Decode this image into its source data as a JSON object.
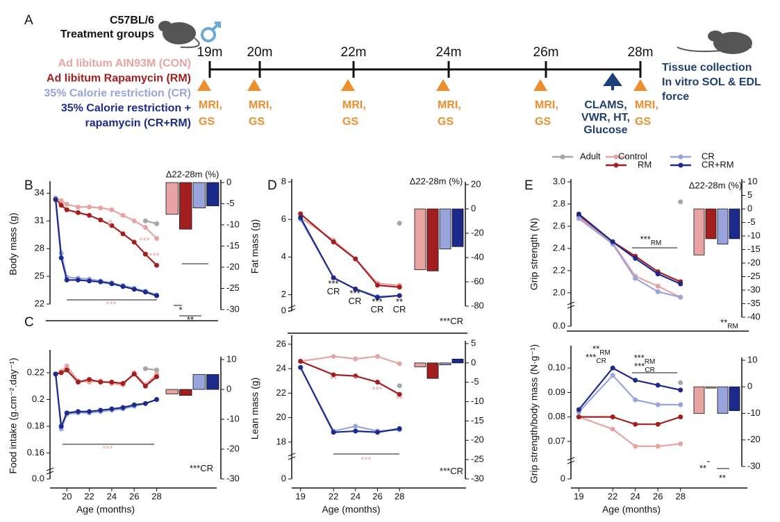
{
  "timeline": {
    "label": "A",
    "strain": "C57BL/6",
    "subtitle": "Treatment groups",
    "groups": [
      {
        "name": [
          "Ad libitum AIN93M (CON)"
        ],
        "color": "#e8a3a3"
      },
      {
        "name": [
          "Ad libitum Rapamycin (RM)"
        ],
        "color": "#a31f1f"
      },
      {
        "name": [
          "35% Calorie restriction (CR)"
        ],
        "color": "#9aa4dc"
      },
      {
        "name": [
          "35% Calorie restriction +",
          "rapamycin (CR+RM)"
        ],
        "color": "#1c2a8c"
      }
    ],
    "timepoints": [
      {
        "label": "19m",
        "event": [
          "MRI,",
          "GS"
        ]
      },
      {
        "label": "20m",
        "event": [
          "MRI,",
          "GS"
        ]
      },
      {
        "label": "22m",
        "event": [
          "MRI,",
          "GS"
        ]
      },
      {
        "label": "24m",
        "event": [
          "MRI,",
          "GS"
        ]
      },
      {
        "label": "26m",
        "event": [
          "MRI,",
          "GS"
        ]
      },
      {
        "label": "28m",
        "event": [
          "MRI,",
          "GS"
        ]
      }
    ],
    "extra": [
      "CLAMS,",
      "VWR, HT,",
      "Glucose"
    ],
    "end": [
      "Tissue collection",
      "In vitro SOL & EDL",
      "force"
    ]
  },
  "legend": [
    {
      "name": "Adult",
      "color": "#a6a6a6"
    },
    {
      "name": "Control",
      "color": "#e8a3a3"
    },
    {
      "name": "RM",
      "color": "#a31f1f"
    },
    {
      "name": "CR",
      "color": "#9aa4dc"
    },
    {
      "name": "CR+RM",
      "color": "#1c2a8c"
    }
  ],
  "chart_data": [
    {
      "type": "line",
      "panel": "B",
      "ylabel": "Body mass (g)",
      "x": [
        19,
        19.5,
        20,
        21,
        22,
        23,
        24,
        25,
        26,
        27,
        28
      ],
      "xlim": [
        18.5,
        28.4
      ],
      "ylim": [
        22,
        35
      ],
      "yticks": [
        22,
        25,
        28,
        31,
        34
      ],
      "series": [
        {
          "color": "#e8a3a3",
          "values": [
            33.5,
            33.2,
            32.8,
            32.5,
            32.5,
            32.4,
            32.2,
            31.6,
            31,
            30.3,
            29.1
          ]
        },
        {
          "color": "#a31f1f",
          "values": [
            33.4,
            32.7,
            32.2,
            31.9,
            31.6,
            31.1,
            30.5,
            29.6,
            28.7,
            27.4,
            26.2
          ]
        },
        {
          "color": "#9aa4dc",
          "values": [
            33.4,
            27.5,
            24.9,
            24.8,
            24.7,
            24.5,
            24.3,
            24.0,
            23.7,
            23.4,
            23.0
          ]
        },
        {
          "color": "#1c2a8c",
          "values": [
            33.3,
            27,
            24.6,
            24.6,
            24.5,
            24.4,
            24.2,
            23.9,
            23.6,
            23.3,
            22.9
          ]
        },
        {
          "color": "#a6a6a6",
          "x": [
            27,
            28
          ],
          "values": [
            31,
            30.7
          ]
        }
      ],
      "annotations": [
        {
          "text": "***",
          "color": "#e8a3a3"
        },
        {
          "text": "#",
          "color": "#e8a3a3"
        },
        {
          "text": "***",
          "color": "#e8a3a3"
        },
        {
          "text": "***",
          "color": "#e8a3a3"
        }
      ]
    },
    {
      "type": "bar",
      "title": "Δ22-28m (%)",
      "values": [
        -7.5,
        -11,
        -6,
        -5.5
      ],
      "colors": [
        "#e8a3a3",
        "#a31f1f",
        "#9aa4dc",
        "#1c2a8c"
      ],
      "ylim": [
        -30,
        0
      ],
      "yticks": [
        0,
        -5,
        -10,
        -15,
        -20,
        -25,
        -30
      ],
      "annotations": [
        {
          "text": "*"
        },
        {
          "text": "**"
        }
      ]
    },
    {
      "type": "line",
      "panel": "C",
      "ylabel": "Food intake (g.cm⁻².day⁻¹)",
      "xlabel": "Age (months)",
      "x": [
        19,
        19.5,
        20,
        21,
        22,
        23,
        24,
        25,
        26,
        27,
        28
      ],
      "xlim": [
        18.5,
        28.4
      ],
      "xticks": [
        20,
        22,
        24,
        26,
        28
      ],
      "ylim": [
        0.15,
        0.235
      ],
      "yticks": [
        0.16,
        0.18,
        0.2,
        0.22
      ],
      "break_tick": {
        "value": 0,
        "label": "0.0"
      },
      "series": [
        {
          "color": "#e8a3a3",
          "values": [
            0.219,
            0.221,
            0.225,
            0.214,
            0.213,
            0.214,
            0.212,
            0.211,
            0.22,
            0.211,
            0.219
          ]
        },
        {
          "color": "#a31f1f",
          "values": [
            0.219,
            0.22,
            0.222,
            0.213,
            0.215,
            0.213,
            0.213,
            0.212,
            0.219,
            0.21,
            0.217
          ]
        },
        {
          "color": "#9aa4dc",
          "values": [
            0.219,
            0.178,
            0.189,
            0.19,
            0.19,
            0.191,
            0.192,
            0.193,
            0.195,
            0.197,
            0.2
          ]
        },
        {
          "color": "#1c2a8c",
          "values": [
            0.219,
            0.18,
            0.19,
            0.191,
            0.191,
            0.192,
            0.193,
            0.194,
            0.196,
            0.197,
            0.2
          ]
        },
        {
          "color": "#a6a6a6",
          "x": [
            27,
            28
          ],
          "values": [
            0.223,
            0.222
          ]
        }
      ],
      "annotations": [
        {
          "text": "***",
          "color": "#e8a3a3"
        }
      ]
    },
    {
      "type": "bar",
      "values": [
        -1.5,
        -2,
        5,
        5
      ],
      "colors": [
        "#e8a3a3",
        "#a31f1f",
        "#9aa4dc",
        "#1c2a8c"
      ],
      "ylim": [
        -30,
        10
      ],
      "yticks": [
        10,
        0,
        -10,
        -20,
        -30
      ],
      "annotations": [
        {
          "text": "***CR"
        }
      ]
    },
    {
      "type": "line",
      "panel": "D",
      "ylabel": "Fat mass (g)",
      "x": [
        19,
        22,
        24,
        26,
        28
      ],
      "xlim": [
        18.2,
        29
      ],
      "ylim": [
        1.5,
        8
      ],
      "yticks": [
        2,
        4,
        6,
        8
      ],
      "break_tick": 0,
      "series": [
        {
          "color": "#e8a3a3",
          "values": [
            6.1,
            4.9,
            3.9,
            2.6,
            2.5
          ]
        },
        {
          "color": "#a31f1f",
          "values": [
            6.3,
            4.8,
            3.9,
            2.5,
            2.4
          ]
        },
        {
          "color": "#9aa4dc",
          "values": [
            6.0,
            2.9,
            2.3,
            1.9,
            1.95
          ]
        },
        {
          "color": "#1c2a8c",
          "values": [
            6.1,
            2.9,
            2.3,
            1.85,
            1.95
          ]
        },
        {
          "color": "#a6a6a6",
          "x": [
            28
          ],
          "values": [
            5.8
          ]
        }
      ],
      "annotations": [
        {
          "text": "***"
        },
        {
          "text": "CR"
        },
        {
          "text": "***"
        },
        {
          "text": "CR"
        },
        {
          "text": "***"
        },
        {
          "text": "CR"
        },
        {
          "text": "**"
        },
        {
          "text": "CR"
        }
      ]
    },
    {
      "type": "bar",
      "title": "Δ22-28m (%)",
      "values": [
        -50,
        -51,
        -33,
        -31
      ],
      "colors": [
        "#e8a3a3",
        "#a31f1f",
        "#9aa4dc",
        "#1c2a8c"
      ],
      "ylim": [
        -80,
        20
      ],
      "yticks": [
        20,
        0,
        -20,
        -40,
        -60,
        -80
      ],
      "annotations": [
        {
          "text": "***CR"
        }
      ]
    },
    {
      "type": "line",
      "ylabel": "Lean mass (g)",
      "xlabel": "Age (months)",
      "x": [
        19,
        22,
        24,
        26,
        28
      ],
      "xlim": [
        18.2,
        29
      ],
      "xticks": [
        19,
        22,
        24,
        26,
        28
      ],
      "ylim": [
        17.2,
        26.5
      ],
      "yticks": [
        18,
        20,
        22,
        24,
        26
      ],
      "break_tick": 0,
      "series": [
        {
          "color": "#e8a3a3",
          "values": [
            24.6,
            25,
            24.8,
            25,
            24.4
          ]
        },
        {
          "color": "#a31f1f",
          "values": [
            24.6,
            23.5,
            23.4,
            22.9,
            21.9
          ]
        },
        {
          "color": "#9aa4dc",
          "values": [
            24.1,
            18.9,
            19.3,
            18.9,
            19.0
          ]
        },
        {
          "color": "#1c2a8c",
          "values": [
            24.1,
            18.8,
            18.9,
            18.8,
            19.1
          ]
        },
        {
          "color": "#a6a6a6",
          "x": [
            28
          ],
          "values": [
            22.6
          ]
        }
      ],
      "annotations": [
        {
          "text": "**",
          "color": "#e8a3a3"
        },
        {
          "text": "*",
          "color": "#e8a3a3"
        },
        {
          "text": "***",
          "color": "#e8a3a3"
        },
        {
          "text": "**",
          "color": "#e8a3a3"
        },
        {
          "text": "***",
          "color": "#e8a3a3"
        }
      ]
    },
    {
      "type": "bar",
      "values": [
        -1,
        -4,
        -0.5,
        1
      ],
      "colors": [
        "#e8a3a3",
        "#a31f1f",
        "#9aa4dc",
        "#1c2a8c"
      ],
      "ylim": [
        -30,
        5
      ],
      "yticks": [
        5,
        0,
        -5,
        -10,
        -15,
        -20,
        -25,
        -30
      ],
      "annotations": [
        {
          "text": "***CR"
        }
      ]
    },
    {
      "type": "line",
      "panel": "E",
      "ylabel": "Grip strength (N)",
      "x": [
        19,
        22,
        24,
        26,
        28
      ],
      "xlim": [
        18.3,
        29
      ],
      "ylim": [
        1.93,
        3.0
      ],
      "yticks": [
        {
          "value": 2,
          "label": "2.0"
        },
        2.2,
        2.4,
        2.6,
        2.8,
        {
          "value": 3,
          "label": "3.0"
        }
      ],
      "break_tick": {
        "value": 0,
        "label": "0.0"
      },
      "series": [
        {
          "color": "#e8a3a3",
          "values": [
            2.68,
            2.45,
            2.15,
            2.06,
            1.96
          ]
        },
        {
          "color": "#a31f1f",
          "values": [
            2.7,
            2.46,
            2.33,
            2.19,
            2.1
          ]
        },
        {
          "color": "#9aa4dc",
          "values": [
            2.67,
            2.44,
            2.13,
            2.01,
            1.96
          ]
        },
        {
          "color": "#1c2a8c",
          "values": [
            2.71,
            2.46,
            2.31,
            2.17,
            2.08
          ]
        },
        {
          "color": "#a6a6a6",
          "x": [
            28
          ],
          "values": [
            2.82
          ]
        }
      ],
      "annotations": [
        {
          "text": "***",
          "sub": "RM"
        }
      ]
    },
    {
      "type": "bar",
      "title": "Δ22-28m (%)",
      "values": [
        -17,
        -11,
        -13,
        -11
      ],
      "colors": [
        "#e8a3a3",
        "#a31f1f",
        "#9aa4dc",
        "#1c2a8c"
      ],
      "ylim": [
        -40,
        10
      ],
      "yticks": [
        10,
        5,
        0,
        -5,
        -10,
        -15,
        -20,
        -25,
        -30,
        -35,
        -40
      ],
      "annotations": [
        {
          "text": "**",
          "sub": "RM"
        }
      ]
    },
    {
      "type": "line",
      "ylabel": "Grip strength/body mass  (N·g⁻¹)",
      "xlabel": "Age (months)",
      "x": [
        19,
        22,
        24,
        26,
        28
      ],
      "xlim": [
        18.3,
        29
      ],
      "xticks": [
        19,
        22,
        24,
        26,
        28
      ],
      "ylim": [
        0.064,
        0.108
      ],
      "yticks": [
        0.07,
        0.08,
        0.09,
        {
          "value": 0.1,
          "label": "0.10"
        }
      ],
      "break_tick": 0,
      "series": [
        {
          "color": "#e8a3a3",
          "values": [
            0.08,
            0.075,
            0.068,
            0.068,
            0.069
          ]
        },
        {
          "color": "#a31f1f",
          "values": [
            0.08,
            0.08,
            0.077,
            0.077,
            0.08
          ]
        },
        {
          "color": "#9aa4dc",
          "values": [
            0.082,
            0.097,
            0.087,
            0.085,
            0.085
          ]
        },
        {
          "color": "#1c2a8c",
          "values": [
            0.083,
            0.1,
            0.095,
            0.093,
            0.091
          ]
        },
        {
          "color": "#a6a6a6",
          "x": [
            28
          ],
          "values": [
            0.094
          ]
        }
      ],
      "annotations": [
        {
          "text": "**",
          "sub": "RM"
        },
        {
          "text": "***",
          "sub": "CR"
        },
        {
          "text": "***",
          "sub": "RM"
        },
        {
          "text": "***",
          "sub": "CR"
        }
      ]
    },
    {
      "type": "bar",
      "values": [
        -10,
        -0.5,
        -10,
        -9
      ],
      "colors": [
        "#e8a3a3",
        "#e8a3a3",
        "#9aa4dc",
        "#1c2a8c"
      ],
      "ylim": [
        -30,
        10
      ],
      "yticks": [
        10,
        0,
        -10,
        -20,
        -30
      ],
      "annotations": [
        {
          "text": "**"
        },
        {
          "text": "**"
        }
      ]
    }
  ]
}
